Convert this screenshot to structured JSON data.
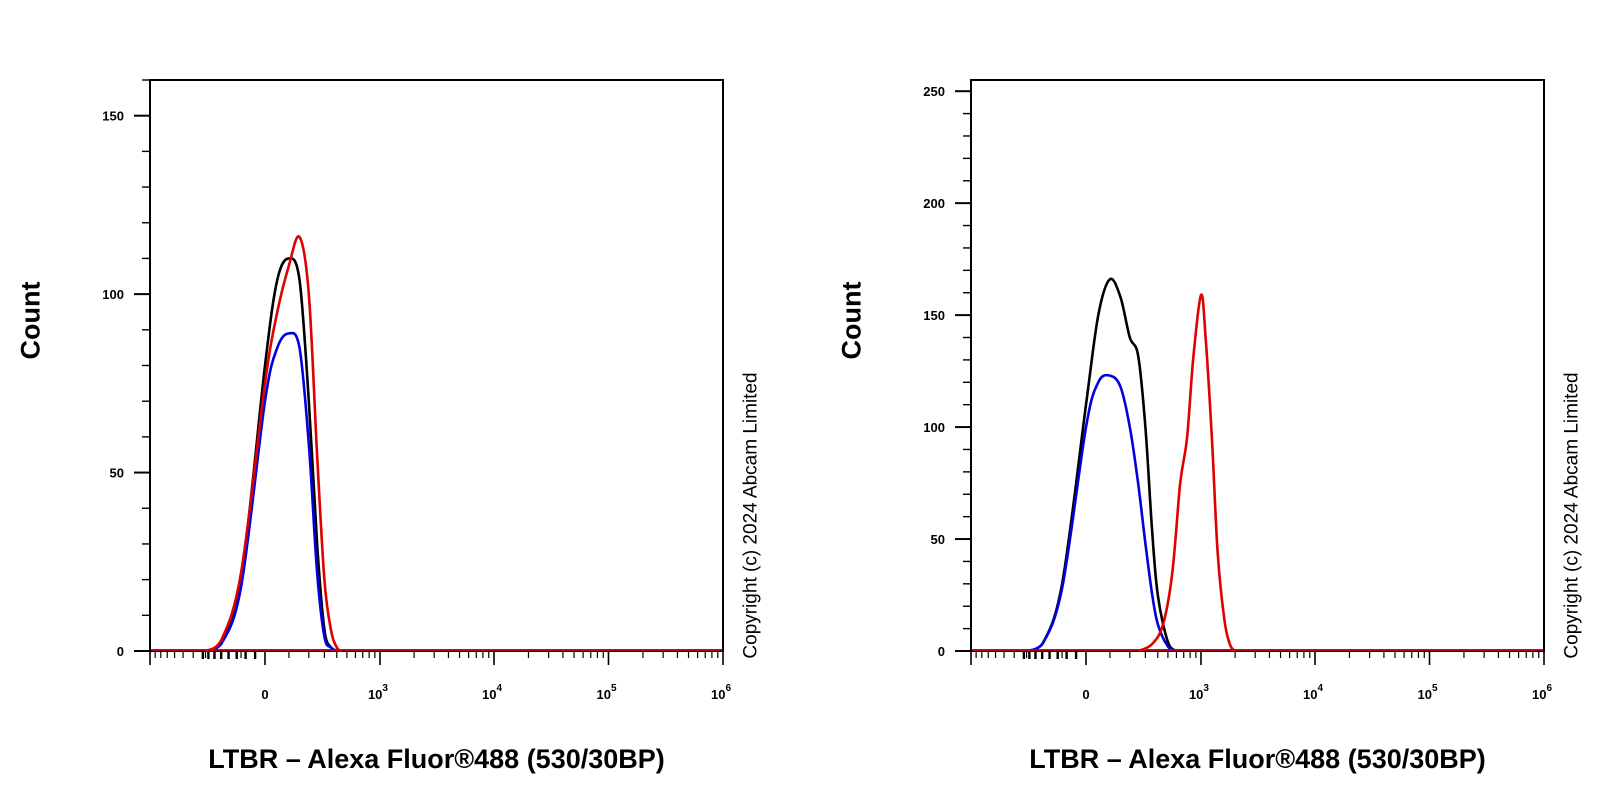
{
  "chart_data": [
    {
      "type": "line",
      "panel": "left",
      "xlabel": "LTBR – Alexa Fluor®488 (530/30BP)",
      "ylabel": "Count",
      "x_scale": "biexponential",
      "x_tick_labels": [
        {
          "value": 0,
          "base": "0",
          "exp": ""
        },
        {
          "value": 1000,
          "base": "10",
          "exp": "3"
        },
        {
          "value": 10000,
          "base": "10",
          "exp": "4"
        },
        {
          "value": 100000,
          "base": "10",
          "exp": "5"
        },
        {
          "value": 1000000,
          "base": "10",
          "exp": "6"
        }
      ],
      "y_tick_labels": [
        "0",
        "50",
        "100",
        "150"
      ],
      "y_ticks": [
        0,
        50,
        100,
        150
      ],
      "ylim": [
        0,
        160
      ],
      "copyright": "Copyright (c) 2024 Abcam Limited",
      "series": [
        {
          "color": "#000000",
          "x": [
            -300,
            -200,
            -100,
            0,
            50,
            100,
            150,
            200,
            250,
            300,
            350,
            400
          ],
          "values": [
            0,
            2,
            20,
            80,
            104,
            110,
            104,
            70,
            30,
            6,
            1,
            0
          ]
        },
        {
          "color": "#0000e0",
          "x": [
            -300,
            -200,
            -100,
            0,
            50,
            100,
            150,
            200,
            250,
            300,
            350,
            400
          ],
          "values": [
            0,
            2,
            18,
            70,
            85,
            89,
            85,
            58,
            22,
            4,
            1,
            0
          ]
        },
        {
          "color": "#e00000",
          "x": [
            -300,
            -200,
            -100,
            0,
            50,
            100,
            150,
            200,
            250,
            300,
            350,
            400,
            450
          ],
          "values": [
            0,
            3,
            22,
            75,
            95,
            108,
            116,
            100,
            55,
            20,
            6,
            1,
            0
          ]
        }
      ]
    },
    {
      "type": "line",
      "panel": "right",
      "xlabel": "LTBR – Alexa Fluor®488 (530/30BP)",
      "ylabel": "Count",
      "x_scale": "biexponential",
      "x_tick_labels": [
        {
          "value": 0,
          "base": "0",
          "exp": ""
        },
        {
          "value": 1000,
          "base": "10",
          "exp": "3"
        },
        {
          "value": 10000,
          "base": "10",
          "exp": "4"
        },
        {
          "value": 100000,
          "base": "10",
          "exp": "5"
        },
        {
          "value": 1000000,
          "base": "10",
          "exp": "6"
        }
      ],
      "y_tick_labels": [
        "0",
        "50",
        "100",
        "150",
        "200",
        "250"
      ],
      "y_ticks": [
        0,
        50,
        100,
        150,
        200,
        250
      ],
      "ylim": [
        0,
        255
      ],
      "copyright": "Copyright (c) 2024 Abcam Limited",
      "series": [
        {
          "color": "#000000",
          "x": [
            -300,
            -200,
            -100,
            0,
            50,
            100,
            150,
            200,
            250,
            300,
            350,
            400,
            500,
            600
          ],
          "values": [
            0,
            3,
            30,
            110,
            150,
            166,
            158,
            140,
            132,
            100,
            55,
            25,
            4,
            0
          ]
        },
        {
          "color": "#0000e0",
          "x": [
            -300,
            -200,
            -100,
            0,
            50,
            100,
            150,
            200,
            250,
            300,
            350,
            400,
            500,
            600
          ],
          "values": [
            0,
            3,
            28,
            100,
            120,
            123,
            118,
            100,
            75,
            48,
            26,
            12,
            2,
            0
          ]
        },
        {
          "color": "#e00000",
          "x": [
            250,
            350,
            450,
            550,
            650,
            750,
            850,
            1000,
            1100,
            1250,
            1400,
            1600,
            1800,
            2000
          ],
          "values": [
            0,
            3,
            12,
            35,
            75,
            95,
            130,
            159,
            140,
            95,
            45,
            15,
            3,
            0
          ]
        }
      ]
    }
  ]
}
